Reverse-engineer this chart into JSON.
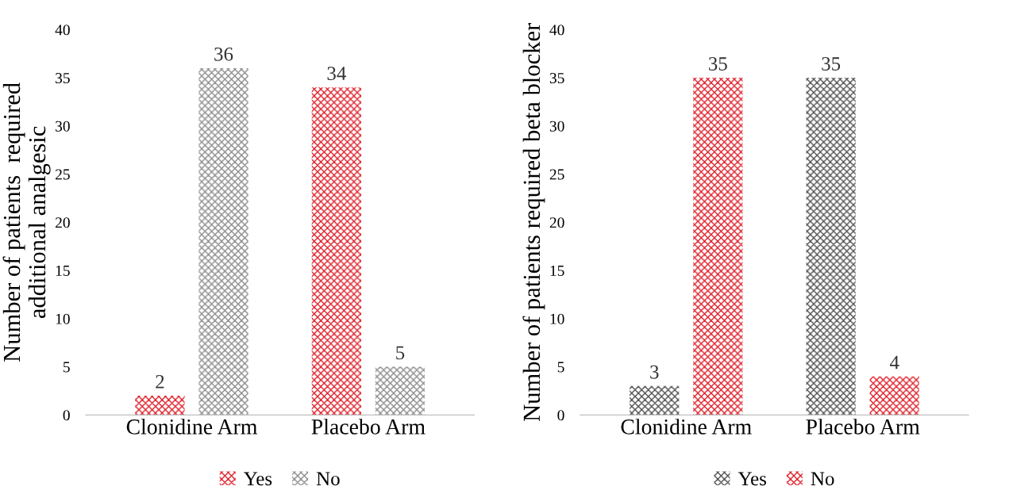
{
  "chart_data": [
    {
      "type": "bar",
      "ylabel": "Number of patients  required\nadditional analgesic",
      "categories": [
        "Clonidine Arm",
        "Placebo Arm"
      ],
      "series": [
        {
          "name": "Yes",
          "color": "#e0202a",
          "values": [
            2,
            34
          ]
        },
        {
          "name": "No",
          "color": "#8c8c8c",
          "values": [
            36,
            5
          ]
        }
      ],
      "ylim": [
        0,
        40
      ],
      "yticks": [
        0,
        5,
        10,
        15,
        20,
        25,
        30,
        35,
        40
      ],
      "data_labels": true,
      "grid": false,
      "legend": "bottom"
    },
    {
      "type": "bar",
      "ylabel": "Number of patients required beta blocker",
      "categories": [
        "Clonidine Arm",
        "Placebo Arm"
      ],
      "series": [
        {
          "name": "Yes",
          "color": "#505050",
          "values": [
            3,
            35
          ]
        },
        {
          "name": "No",
          "color": "#e0202a",
          "values": [
            35,
            4
          ]
        }
      ],
      "ylim": [
        0,
        40
      ],
      "yticks": [
        0,
        5,
        10,
        15,
        20,
        25,
        30,
        35,
        40
      ],
      "data_labels": true,
      "grid": false,
      "legend": "bottom"
    }
  ]
}
